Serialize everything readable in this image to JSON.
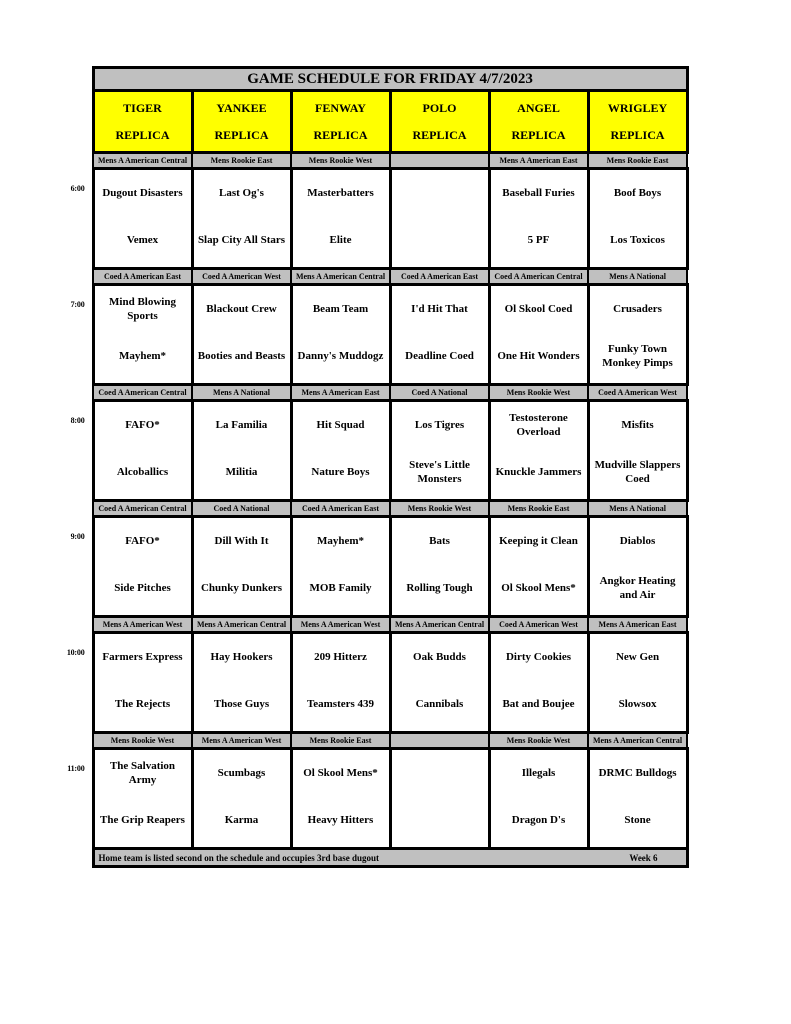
{
  "title": "GAME SCHEDULE FOR FRIDAY 4/7/2023",
  "colors": {
    "panel_gray": "#C0C0C0",
    "field_yellow": "#FFFF00",
    "border_black": "#000000",
    "page_white": "#FFFFFF"
  },
  "fields": [
    {
      "name": "TIGER",
      "type": "REPLICA"
    },
    {
      "name": "YANKEE",
      "type": "REPLICA"
    },
    {
      "name": "FENWAY",
      "type": "REPLICA"
    },
    {
      "name": "POLO",
      "type": "REPLICA"
    },
    {
      "name": "ANGEL",
      "type": "REPLICA"
    },
    {
      "name": "WRIGLEY",
      "type": "REPLICA"
    }
  ],
  "time_slots": [
    {
      "time": "6:00",
      "games": [
        {
          "division": "Mens A American Central",
          "away": "Dugout Disasters",
          "home": "Vemex"
        },
        {
          "division": "Mens Rookie East",
          "away": "Last Og's",
          "home": "Slap City All Stars"
        },
        {
          "division": "Mens Rookie West",
          "away": "Masterbatters",
          "home": "Elite"
        },
        {
          "division": "",
          "away": "",
          "home": ""
        },
        {
          "division": "Mens A American East",
          "away": "Baseball Furies",
          "home": "5 PF"
        },
        {
          "division": "Mens Rookie East",
          "away": "Boof Boys",
          "home": "Los Toxicos"
        }
      ]
    },
    {
      "time": "7:00",
      "games": [
        {
          "division": "Coed A American East",
          "away": "Mind Blowing Sports",
          "home": "Mayhem*"
        },
        {
          "division": "Coed A American West",
          "away": "Blackout Crew",
          "home": "Booties and Beasts"
        },
        {
          "division": "Mens A American Central",
          "away": "Beam Team",
          "home": "Danny's Muddogz"
        },
        {
          "division": "Coed A American East",
          "away": "I'd Hit That",
          "home": "Deadline Coed"
        },
        {
          "division": "Coed A American Central",
          "away": "Ol Skool Coed",
          "home": "One Hit Wonders"
        },
        {
          "division": "Mens A National",
          "away": "Crusaders",
          "home": "Funky Town Monkey Pimps"
        }
      ]
    },
    {
      "time": "8:00",
      "games": [
        {
          "division": "Coed A American Central",
          "away": "FAFO*",
          "home": "Alcoballics"
        },
        {
          "division": "Mens A National",
          "away": "La Familia",
          "home": "Militia"
        },
        {
          "division": "Mens A American East",
          "away": "Hit Squad",
          "home": "Nature Boys"
        },
        {
          "division": "Coed A National",
          "away": "Los Tigres",
          "home": "Steve's Little Monsters"
        },
        {
          "division": "Mens Rookie West",
          "away": "Testosterone Overload",
          "home": "Knuckle Jammers"
        },
        {
          "division": "Coed A American West",
          "away": "Misfits",
          "home": "Mudville Slappers Coed"
        }
      ]
    },
    {
      "time": "9:00",
      "games": [
        {
          "division": "Coed A American Central",
          "away": "FAFO*",
          "home": "Side Pitches"
        },
        {
          "division": "Coed A National",
          "away": "Dill With It",
          "home": "Chunky Dunkers"
        },
        {
          "division": "Coed A American East",
          "away": "Mayhem*",
          "home": "MOB Family"
        },
        {
          "division": "Mens Rookie West",
          "away": "Bats",
          "home": "Rolling Tough"
        },
        {
          "division": "Mens Rookie East",
          "away": "Keeping it Clean",
          "home": "Ol Skool Mens*"
        },
        {
          "division": "Mens A National",
          "away": "Diablos",
          "home": "Angkor Heating and Air"
        }
      ]
    },
    {
      "time": "10:00",
      "games": [
        {
          "division": "Mens A American West",
          "away": "Farmers Express",
          "home": "The Rejects"
        },
        {
          "division": "Mens A American Central",
          "away": "Hay Hookers",
          "home": "Those Guys"
        },
        {
          "division": "Mens A American West",
          "away": "209 Hitterz",
          "home": "Teamsters 439"
        },
        {
          "division": "Mens A American Central",
          "away": "Oak Budds",
          "home": "Cannibals"
        },
        {
          "division": "Coed A American West",
          "away": "Dirty Cookies",
          "home": "Bat and Boujee"
        },
        {
          "division": "Mens A American East",
          "away": "New Gen",
          "home": "Slowsox"
        }
      ]
    },
    {
      "time": "11:00",
      "games": [
        {
          "division": "Mens Rookie West",
          "away": "The Salvation Army",
          "home": "The Grip Reapers"
        },
        {
          "division": "Mens A American West",
          "away": "Scumbags",
          "home": "Karma"
        },
        {
          "division": "Mens Rookie East",
          "away": "Ol Skool Mens*",
          "home": "Heavy Hitters"
        },
        {
          "division": "",
          "away": "",
          "home": ""
        },
        {
          "division": "Mens Rookie West",
          "away": "Illegals",
          "home": "Dragon D's"
        },
        {
          "division": "Mens A American Central",
          "away": "DRMC Bulldogs",
          "home": "Stone"
        }
      ]
    }
  ],
  "footer": {
    "note": "Home team is listed second on the schedule and occupies 3rd base dugout",
    "week": "Week 6"
  }
}
